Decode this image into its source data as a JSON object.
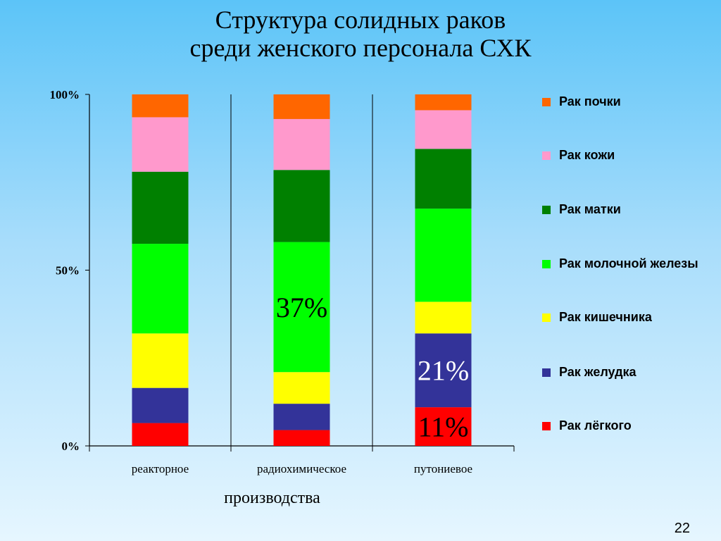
{
  "slide": {
    "title_line1": "Структура солидных раков",
    "title_line2": "среди женского персонала СХК",
    "page_number": "22"
  },
  "chart_data": {
    "type": "bar",
    "stacked": true,
    "percent_stacked": true,
    "categories": [
      "реакторное",
      "радиохимическое",
      "путониевое"
    ],
    "xlabel": "производства",
    "ylabel": "",
    "ylim": [
      0,
      100
    ],
    "yticks": [
      "0%",
      "50%",
      "100%"
    ],
    "legend_position": "right",
    "series": [
      {
        "name": "Рак лёгкого",
        "color": "#ff0000",
        "values": [
          6.5,
          4.5,
          11
        ]
      },
      {
        "name": "Рак желудка",
        "color": "#333399",
        "values": [
          10,
          7.5,
          21
        ]
      },
      {
        "name": "Рак кишечника",
        "color": "#ffff00",
        "values": [
          15.5,
          9,
          9
        ]
      },
      {
        "name": "Рак молочной железы",
        "color": "#00ff00",
        "values": [
          25.5,
          37,
          26.5
        ]
      },
      {
        "name": "Рак матки",
        "color": "#008000",
        "values": [
          20.5,
          20.5,
          17
        ]
      },
      {
        "name": "Рак кожи",
        "color": "#ff99cc",
        "values": [
          15.5,
          14.5,
          11
        ]
      },
      {
        "name": "Рак почки",
        "color": "#ff6600",
        "values": [
          6.5,
          7,
          4.5
        ]
      }
    ],
    "annotations": [
      {
        "category": "радиохимическое",
        "series": "Рак молочной железы",
        "text": "37%"
      },
      {
        "category": "путониевое",
        "series": "Рак желудка",
        "text": "21%",
        "color": "#ffffff"
      },
      {
        "category": "путониевое",
        "series": "Рак лёгкого",
        "text": "11%"
      }
    ]
  },
  "legend": {
    "items": [
      {
        "label": "Рак почки",
        "color": "#ff6600"
      },
      {
        "label": "Рак кожи",
        "color": "#ff99cc"
      },
      {
        "label": "Рак матки",
        "color": "#008000"
      },
      {
        "label": "Рак молочной железы",
        "color": "#00ff00"
      },
      {
        "label": "Рак кишечника",
        "color": "#ffff00"
      },
      {
        "label": "Рак желудка",
        "color": "#333399"
      },
      {
        "label": "Рак лёгкого",
        "color": "#ff0000"
      }
    ]
  }
}
